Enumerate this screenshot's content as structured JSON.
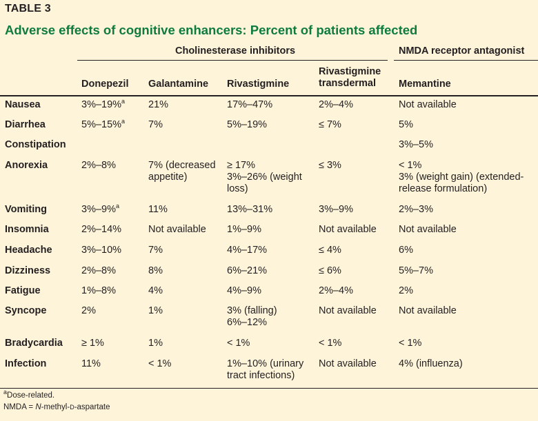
{
  "table_label": "TABLE 3",
  "title": "Adverse effects of cognitive enhancers: Percent of patients affected",
  "group_headers": {
    "cholinesterase": "Cholinesterase inhibitors",
    "nmda": "NMDA receptor antagonist"
  },
  "columns": {
    "donepezil": "Donepezil",
    "galantamine": "Galantamine",
    "rivastigmine": "Rivastigmine",
    "rivastigmine_transdermal_1": "Rivastigmine",
    "rivastigmine_transdermal_2": "transdermal",
    "memantine": "Memantine"
  },
  "rows": [
    {
      "label": "Nausea",
      "donepezil": "3%–19%",
      "donepezil_sup": "a",
      "galantamine": "21%",
      "rivastigmine": "17%–47%",
      "transdermal": "2%–4%",
      "memantine": "Not available"
    },
    {
      "label": "Diarrhea",
      "donepezil": "5%–15%",
      "donepezil_sup": "a",
      "galantamine": "7%",
      "rivastigmine": "5%–19%",
      "transdermal": "≤ 7%",
      "memantine": "5%"
    },
    {
      "label": "Constipation",
      "donepezil": "",
      "galantamine": "",
      "rivastigmine": "",
      "transdermal": "",
      "memantine": "3%–5%"
    },
    {
      "label": "Anorexia",
      "donepezil": "2%–8%",
      "galantamine": "7% (decreased appetite)",
      "rivastigmine": "≥ 17%\n3%–26% (weight loss)",
      "transdermal": "≤ 3%",
      "memantine": "< 1%\n3% (weight gain) (extended-release formulation)"
    },
    {
      "label": "Vomiting",
      "donepezil": "3%–9%",
      "donepezil_sup": "a",
      "galantamine": "11%",
      "rivastigmine": "13%–31%",
      "transdermal": "3%–9%",
      "memantine": "2%–3%"
    },
    {
      "label": "Insomnia",
      "donepezil": "2%–14%",
      "galantamine": "Not available",
      "rivastigmine": "1%–9%",
      "transdermal": "Not available",
      "memantine": "Not available"
    },
    {
      "label": "Headache",
      "donepezil": "3%–10%",
      "galantamine": "7%",
      "rivastigmine": "4%–17%",
      "transdermal": "≤ 4%",
      "memantine": "6%"
    },
    {
      "label": "Dizziness",
      "donepezil": "2%–8%",
      "galantamine": "8%",
      "rivastigmine": "6%–21%",
      "transdermal": "≤ 6%",
      "memantine": "5%–7%"
    },
    {
      "label": "Fatigue",
      "donepezil": "1%–8%",
      "galantamine": "4%",
      "rivastigmine": "4%–9%",
      "transdermal": "2%–4%",
      "memantine": "2%"
    },
    {
      "label": "Syncope",
      "donepezil": "2%",
      "galantamine": "1%",
      "rivastigmine": "3% (falling)\n6%–12%",
      "transdermal": "Not available",
      "memantine": "Not available"
    },
    {
      "label": "Bradycardia",
      "donepezil": "≥ 1%",
      "galantamine": "1%",
      "rivastigmine": "< 1%",
      "transdermal": "< 1%",
      "memantine": "< 1%"
    },
    {
      "label": "Infection",
      "donepezil": "11%",
      "galantamine": "< 1%",
      "rivastigmine": "1%–10% (urinary tract infections)",
      "transdermal": "Not available",
      "memantine": "4% (influenza)"
    }
  ],
  "footnotes": {
    "dose_mark": "a",
    "dose_text": "Dose-related.",
    "nmda_prefix": "NMDA = ",
    "nmda_n": "N",
    "nmda_mid": "-methyl-",
    "nmda_d": "D",
    "nmda_end": "-aspartate"
  }
}
